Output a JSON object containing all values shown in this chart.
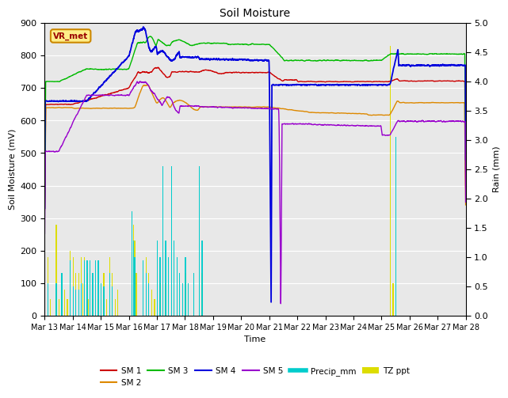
{
  "title": "Soil Moisture",
  "xlabel": "Time",
  "ylabel_left": "Soil Moisture (mV)",
  "ylabel_right": "Rain (mm)",
  "ylim_left": [
    0,
    900
  ],
  "ylim_right": [
    0,
    5.0
  ],
  "background_color": "#ffffff",
  "plot_bg_color": "#e8e8e8",
  "station_label": "VR_met",
  "xtick_labels": [
    "Mar 13",
    "Mar 14",
    "Mar 15",
    "Mar 16",
    "Mar 17",
    "Mar 18",
    "Mar 19",
    "Mar 20",
    "Mar 21",
    "Mar 22",
    "Mar 23",
    "Mar 24",
    "Mar 25",
    "Mar 26",
    "Mar 27",
    "Mar 28"
  ],
  "colors": {
    "SM1": "#cc0000",
    "SM2": "#dd8800",
    "SM3": "#00bb00",
    "SM4": "#0000dd",
    "SM5": "#9900cc",
    "Precip_mm": "#00cccc",
    "TZ_ppt": "#dddd00"
  },
  "legend_entries": [
    "SM 1",
    "SM 2",
    "SM 3",
    "SM 4",
    "SM 5",
    "Precip_mm",
    "TZ ppt"
  ]
}
